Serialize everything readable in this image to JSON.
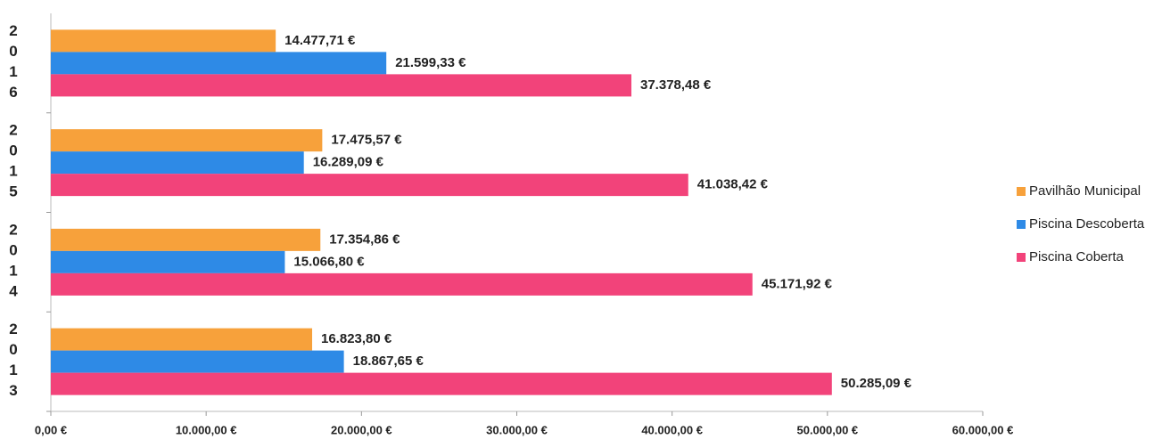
{
  "chart_data": {
    "type": "hbar",
    "categories": [
      "2016",
      "2015",
      "2014",
      "2013"
    ],
    "series": [
      {
        "name": "Pavilhão Municipal",
        "color": "#f7a13b",
        "values": [
          14477.71,
          17475.57,
          17354.86,
          16823.8
        ],
        "value_labels": [
          "14.477,71 €",
          "17.475,57 €",
          "17.354,86 €",
          "16.823,80 €"
        ]
      },
      {
        "name": "Piscina Descoberta",
        "color": "#2e8ae6",
        "values": [
          21599.33,
          16289.09,
          15066.8,
          18867.65
        ],
        "value_labels": [
          "21.599,33 €",
          "16.289,09 €",
          "15.066,80 €",
          "18.867,65 €"
        ]
      },
      {
        "name": "Piscina Coberta",
        "color": "#f2437a",
        "values": [
          37378.48,
          41038.42,
          45171.92,
          50285.09
        ],
        "value_labels": [
          "37.378,48 €",
          "41.038,42 €",
          "45.171,92 €",
          "50.285,09 €"
        ]
      }
    ],
    "xlim": [
      0,
      60000
    ],
    "xticks": [
      {
        "value": 0,
        "label": "0,00 €"
      },
      {
        "value": 10000,
        "label": "10.000,00 €"
      },
      {
        "value": 20000,
        "label": "20.000,00 €"
      },
      {
        "value": 30000,
        "label": "30.000,00 €"
      },
      {
        "value": 40000,
        "label": "40.000,00 €"
      },
      {
        "value": 50000,
        "label": "50.000,00 €"
      },
      {
        "value": 60000,
        "label": "60.000,00 €"
      }
    ],
    "legend": "right"
  }
}
